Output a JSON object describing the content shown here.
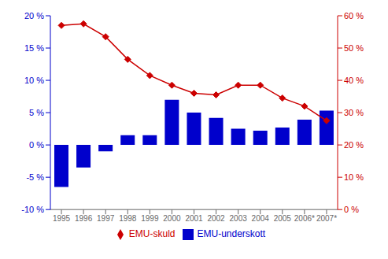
{
  "chart_data": {
    "type": "bar",
    "categories": [
      "1995",
      "1996",
      "1997",
      "1998",
      "1999",
      "2000",
      "2001",
      "2002",
      "2003",
      "2004",
      "2005",
      "2006*",
      "2007*"
    ],
    "series": [
      {
        "name": "EMU-underskott",
        "type": "bar",
        "color": "#0000cc",
        "values": [
          -6.5,
          -3.5,
          -1.0,
          1.5,
          1.5,
          7.0,
          5.0,
          4.2,
          2.5,
          2.2,
          2.7,
          3.9,
          5.3
        ]
      },
      {
        "name": "EMU-skuld",
        "type": "line",
        "color": "#cc0000",
        "marker": "diamond",
        "axis": "y2",
        "values": [
          57.0,
          57.5,
          53.5,
          46.5,
          41.5,
          38.5,
          36.0,
          35.5,
          38.5,
          38.5,
          34.5,
          32.0,
          27.5
        ]
      }
    ],
    "ylim": [
      -10,
      20
    ],
    "yticks": [
      {
        "value": -10,
        "label": "-10 %"
      },
      {
        "value": -5,
        "label": "-5 %"
      },
      {
        "value": 0,
        "label": "0 %"
      },
      {
        "value": 5,
        "label": "5 %"
      },
      {
        "value": 10,
        "label": "10 %"
      },
      {
        "value": 15,
        "label": "15 %"
      },
      {
        "value": 20,
        "label": "20 %"
      }
    ],
    "y2lim": [
      0,
      60
    ],
    "y2ticks": [
      {
        "value": 0,
        "label": "0 %"
      },
      {
        "value": 10,
        "label": "10 %"
      },
      {
        "value": 20,
        "label": "20 %"
      },
      {
        "value": 30,
        "label": "30 %"
      },
      {
        "value": 40,
        "label": "40 %"
      },
      {
        "value": 50,
        "label": "50 %"
      },
      {
        "value": 60,
        "label": "60 %"
      }
    ],
    "grid": false,
    "legend": "bottom"
  }
}
